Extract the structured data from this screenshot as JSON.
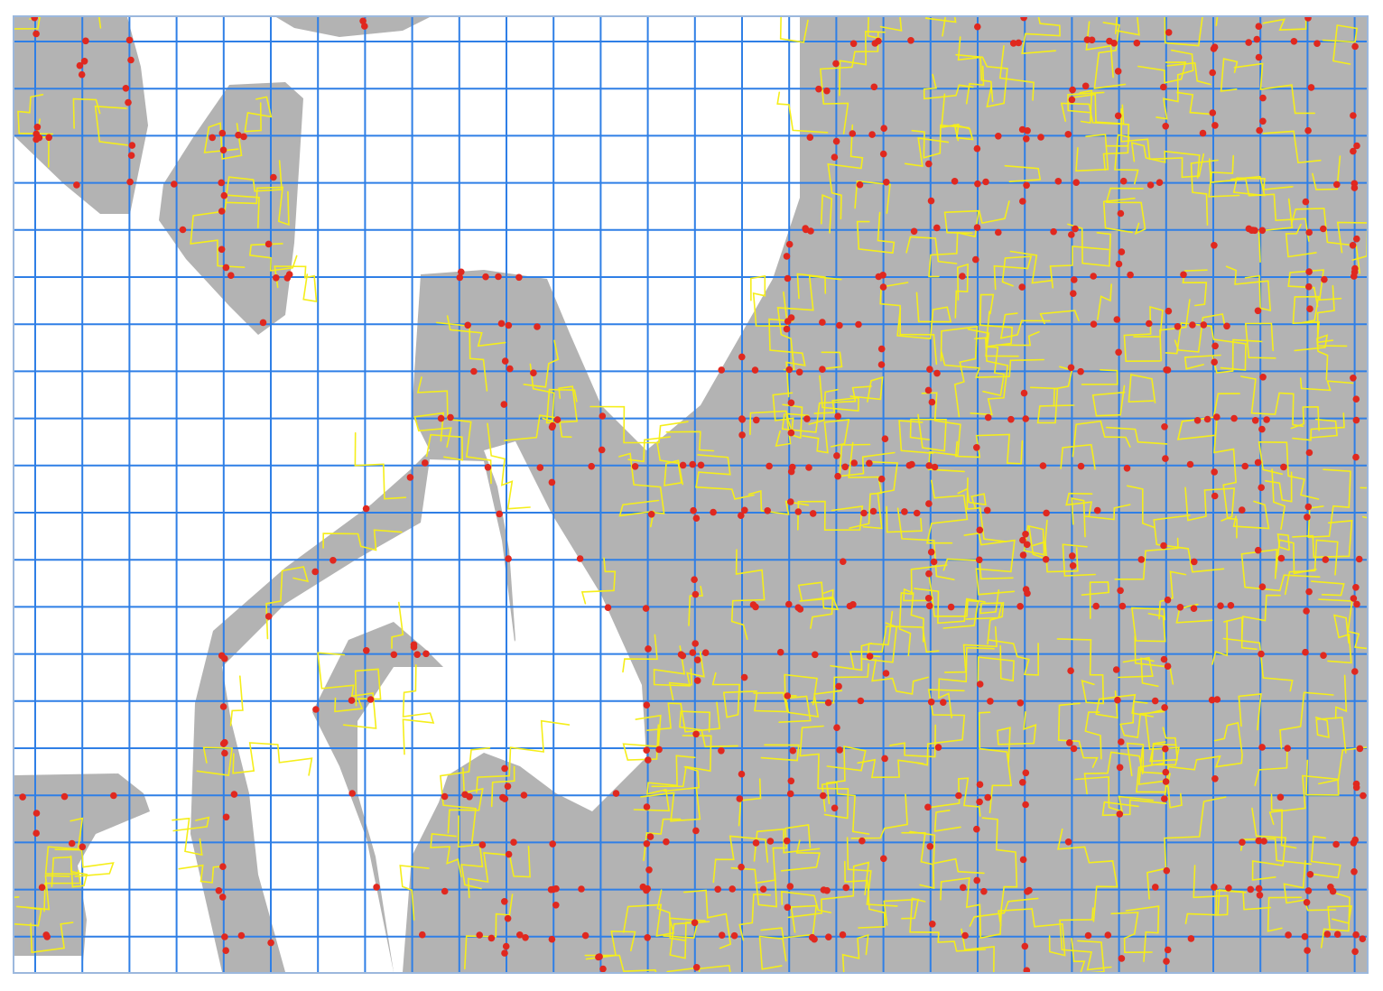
{
  "map": {
    "colors": {
      "background": "#ffffff",
      "region": "#b3b3b3",
      "grid": "#2f7fe6",
      "roads": "#f5ee1a",
      "nodes": "#e0281f",
      "frame": "#9cb8dd"
    },
    "layers": [
      "grid-lines",
      "coverage-areas",
      "road-network",
      "intersection-nodes"
    ]
  }
}
